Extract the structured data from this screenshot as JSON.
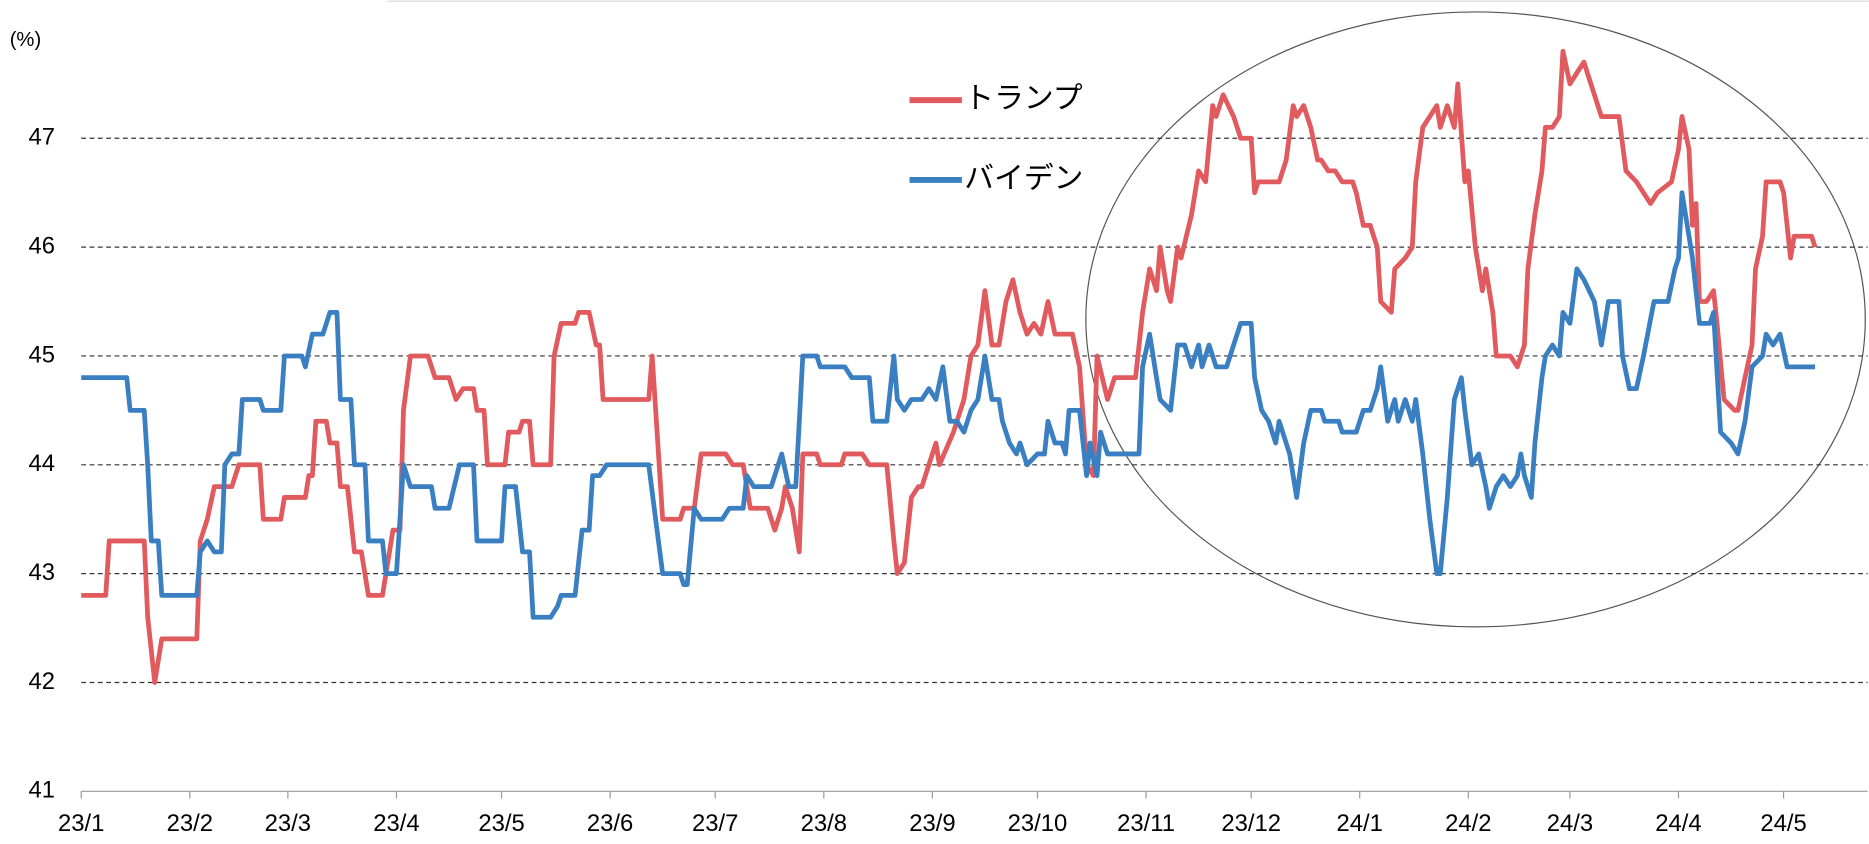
{
  "chart_data": {
    "type": "line",
    "ylabel": "(%)",
    "xlim": [
      0,
      510
    ],
    "ylim": [
      41,
      48
    ],
    "xticks": [
      {
        "value": 0,
        "label": "23/1"
      },
      {
        "value": 31,
        "label": "23/2"
      },
      {
        "value": 59,
        "label": "23/3"
      },
      {
        "value": 90,
        "label": "23/4"
      },
      {
        "value": 120,
        "label": "23/5"
      },
      {
        "value": 151,
        "label": "23/6"
      },
      {
        "value": 181,
        "label": "23/7"
      },
      {
        "value": 212,
        "label": "23/8"
      },
      {
        "value": 243,
        "label": "23/9"
      },
      {
        "value": 273,
        "label": "23/10"
      },
      {
        "value": 304,
        "label": "23/11"
      },
      {
        "value": 334,
        "label": "23/12"
      },
      {
        "value": 365,
        "label": "24/1"
      },
      {
        "value": 396,
        "label": "24/2"
      },
      {
        "value": 425,
        "label": "24/3"
      },
      {
        "value": 456,
        "label": "24/4"
      },
      {
        "value": 486,
        "label": "24/5"
      }
    ],
    "yticks": [
      41,
      42,
      43,
      44,
      45,
      46,
      47
    ],
    "grid": true,
    "legend": "top",
    "series": [
      {
        "name": "トランプ",
        "color": "#e05a5e",
        "x": [
          0,
          7,
          8,
          18,
          19,
          21,
          23,
          33,
          34,
          36,
          38,
          41,
          43,
          45,
          51,
          52,
          57,
          58,
          64,
          65,
          66,
          67,
          70,
          71,
          73,
          74,
          76,
          78,
          80,
          82,
          86,
          87,
          89,
          91,
          92,
          94,
          99,
          101,
          105,
          107,
          109,
          112,
          113,
          115,
          116,
          121,
          122,
          125,
          126,
          128,
          129,
          134,
          135,
          137,
          141,
          142,
          145,
          147,
          148,
          149,
          162,
          163,
          165,
          166,
          171,
          172,
          175,
          177,
          184,
          186,
          189,
          191,
          196,
          198,
          200,
          201,
          203,
          205,
          206,
          210,
          211,
          217,
          218,
          223,
          225,
          230,
          232,
          233,
          235,
          237,
          239,
          240,
          242,
          244,
          245,
          249,
          252,
          254,
          256,
          258,
          260,
          262,
          264,
          266,
          268,
          270,
          272,
          274,
          276,
          278,
          283,
          285,
          287,
          289,
          290,
          293,
          295,
          301,
          303,
          305,
          307,
          308,
          310,
          311,
          313,
          314,
          317,
          319,
          321,
          323,
          324,
          326,
          329,
          331,
          334,
          335,
          336,
          342,
          344,
          346,
          347,
          349,
          351,
          353,
          354,
          356,
          358,
          360,
          363,
          364,
          366,
          368,
          370,
          371,
          374,
          375,
          378,
          380,
          381,
          383,
          385,
          387,
          388,
          390,
          392,
          393,
          395,
          396,
          398,
          400,
          401,
          403,
          404,
          408,
          410,
          412,
          413,
          415,
          417,
          418,
          420,
          422,
          423,
          425,
          427,
          429,
          432,
          434,
          439,
          441,
          444,
          446,
          448,
          450,
          454,
          456,
          457,
          459,
          460,
          461,
          462,
          464,
          466,
          467,
          469,
          472,
          473,
          475,
          477,
          478,
          480,
          481,
          485,
          486,
          488,
          489,
          494,
          495
        ],
        "values": [
          42.8,
          42.8,
          43.3,
          43.3,
          42.6,
          42.0,
          42.4,
          42.4,
          43.3,
          43.5,
          43.8,
          43.8,
          43.8,
          44.0,
          44.0,
          43.5,
          43.5,
          43.7,
          43.7,
          43.9,
          43.9,
          44.4,
          44.4,
          44.2,
          44.2,
          43.8,
          43.8,
          43.2,
          43.2,
          42.8,
          42.8,
          43.0,
          43.4,
          43.4,
          44.5,
          45.0,
          45.0,
          44.8,
          44.8,
          44.6,
          44.7,
          44.7,
          44.5,
          44.5,
          44.0,
          44.0,
          44.3,
          44.3,
          44.4,
          44.4,
          44.0,
          44.0,
          45.0,
          45.3,
          45.3,
          45.4,
          45.4,
          45.1,
          45.1,
          44.6,
          44.6,
          45.0,
          44.0,
          43.5,
          43.5,
          43.6,
          43.6,
          44.1,
          44.1,
          44.0,
          44.0,
          43.6,
          43.6,
          43.4,
          43.6,
          43.8,
          43.6,
          43.2,
          44.1,
          44.1,
          44.0,
          44.0,
          44.1,
          44.1,
          44.0,
          44.0,
          43.3,
          43.0,
          43.1,
          43.7,
          43.8,
          43.8,
          44.0,
          44.2,
          44.0,
          44.3,
          44.6,
          45.0,
          45.1,
          45.6,
          45.1,
          45.1,
          45.5,
          45.7,
          45.4,
          45.2,
          45.3,
          45.2,
          45.5,
          45.2,
          45.2,
          44.9,
          44.0,
          43.9,
          45.0,
          44.6,
          44.8,
          44.8,
          45.4,
          45.8,
          45.6,
          46.0,
          45.6,
          45.5,
          46.0,
          45.9,
          46.3,
          46.7,
          46.6,
          47.3,
          47.2,
          47.4,
          47.2,
          47.0,
          47.0,
          46.5,
          46.6,
          46.6,
          46.8,
          47.3,
          47.2,
          47.3,
          47.1,
          46.8,
          46.8,
          46.7,
          46.7,
          46.6,
          46.6,
          46.5,
          46.2,
          46.2,
          46.0,
          45.5,
          45.4,
          45.8,
          45.9,
          46.0,
          46.6,
          47.1,
          47.2,
          47.3,
          47.1,
          47.3,
          47.1,
          47.5,
          46.6,
          46.7,
          46.0,
          45.6,
          45.8,
          45.4,
          45.0,
          45.0,
          44.9,
          45.1,
          45.8,
          46.3,
          46.7,
          47.1,
          47.1,
          47.2,
          47.8,
          47.5,
          47.6,
          47.7,
          47.4,
          47.2,
          47.2,
          46.7,
          46.6,
          46.5,
          46.4,
          46.5,
          46.6,
          46.9,
          47.2,
          46.9,
          46.2,
          46.4,
          45.5,
          45.5,
          45.6,
          45.3,
          44.6,
          44.5,
          44.5,
          44.8,
          45.1,
          45.8,
          46.1,
          46.6,
          46.6,
          46.5,
          45.9,
          46.1,
          46.1,
          46.0
        ]
      },
      {
        "name": "バイデン",
        "color": "#3a7fc1",
        "x": [
          0,
          13,
          14,
          18,
          19,
          20,
          22,
          23,
          33,
          34,
          36,
          38,
          40,
          41,
          43,
          45,
          46,
          51,
          52,
          57,
          58,
          63,
          64,
          66,
          69,
          71,
          73,
          74,
          77,
          78,
          81,
          82,
          86,
          87,
          90,
          91,
          92,
          94,
          100,
          101,
          105,
          108,
          112,
          113,
          120,
          121,
          124,
          126,
          128,
          129,
          134,
          136,
          137,
          141,
          143,
          145,
          146,
          148,
          150,
          162,
          164,
          166,
          171,
          172,
          173,
          175,
          177,
          183,
          185,
          189,
          190,
          192,
          197,
          199,
          200,
          202,
          204,
          206,
          210,
          211,
          218,
          220,
          225,
          226,
          230,
          232,
          233,
          235,
          237,
          240,
          242,
          244,
          246,
          248,
          250,
          252,
          254,
          256,
          258,
          260,
          262,
          263,
          265,
          267,
          268,
          270,
          273,
          275,
          276,
          278,
          280,
          281,
          282,
          285,
          287,
          288,
          290,
          291,
          293,
          302,
          303,
          305,
          307,
          308,
          311,
          313,
          315,
          317,
          319,
          320,
          322,
          324,
          327,
          329,
          331,
          334,
          335,
          337,
          339,
          341,
          342,
          345,
          347,
          349,
          351,
          354,
          355,
          359,
          360,
          364,
          366,
          368,
          370,
          371,
          373,
          375,
          376,
          378,
          380,
          381,
          383,
          385,
          387,
          388,
          390,
          392,
          394,
          395,
          397,
          399,
          401,
          402,
          404,
          406,
          408,
          410,
          411,
          412,
          414,
          415,
          417,
          418,
          420,
          422,
          423,
          425,
          427,
          429,
          432,
          434,
          436,
          439,
          440,
          442,
          444,
          446,
          449,
          453,
          455,
          456,
          457,
          459,
          460,
          462,
          465,
          466,
          468,
          471,
          473,
          475,
          477,
          480,
          481,
          483,
          485,
          487,
          495
        ],
        "values": [
          44.8,
          44.8,
          44.5,
          44.5,
          44.0,
          43.3,
          43.3,
          42.8,
          42.8,
          43.2,
          43.3,
          43.2,
          43.2,
          44.0,
          44.1,
          44.1,
          44.6,
          44.6,
          44.5,
          44.5,
          45.0,
          45.0,
          44.9,
          45.2,
          45.2,
          45.4,
          45.4,
          44.6,
          44.6,
          44.0,
          44.0,
          43.3,
          43.3,
          43.0,
          43.0,
          43.5,
          44.0,
          43.8,
          43.8,
          43.6,
          43.6,
          44.0,
          44.0,
          43.3,
          43.3,
          43.8,
          43.8,
          43.2,
          43.2,
          42.6,
          42.6,
          42.7,
          42.8,
          42.8,
          43.4,
          43.4,
          43.9,
          43.9,
          44.0,
          44.0,
          43.5,
          43.0,
          43.0,
          42.9,
          42.9,
          43.6,
          43.5,
          43.5,
          43.6,
          43.6,
          43.9,
          43.8,
          43.8,
          44.0,
          44.1,
          43.8,
          43.8,
          45.0,
          45.0,
          44.9,
          44.9,
          44.8,
          44.8,
          44.4,
          44.4,
          45.0,
          44.6,
          44.5,
          44.6,
          44.6,
          44.7,
          44.6,
          44.9,
          44.4,
          44.4,
          44.3,
          44.5,
          44.6,
          45.0,
          44.6,
          44.6,
          44.4,
          44.2,
          44.1,
          44.2,
          44.0,
          44.1,
          44.1,
          44.4,
          44.2,
          44.2,
          44.1,
          44.5,
          44.5,
          43.9,
          44.2,
          43.9,
          44.3,
          44.1,
          44.1,
          44.9,
          45.2,
          44.8,
          44.6,
          44.5,
          45.1,
          45.1,
          44.9,
          45.1,
          44.9,
          45.1,
          44.9,
          44.9,
          45.1,
          45.3,
          45.3,
          44.8,
          44.5,
          44.4,
          44.2,
          44.4,
          44.1,
          43.7,
          44.2,
          44.5,
          44.5,
          44.4,
          44.4,
          44.3,
          44.3,
          44.5,
          44.5,
          44.7,
          44.9,
          44.4,
          44.6,
          44.4,
          44.6,
          44.4,
          44.6,
          44.1,
          43.5,
          43.0,
          43.0,
          43.7,
          44.6,
          44.8,
          44.5,
          44.0,
          44.1,
          43.8,
          43.6,
          43.8,
          43.9,
          43.8,
          43.9,
          44.1,
          43.9,
          43.7,
          44.2,
          44.8,
          45.0,
          45.1,
          45.0,
          45.4,
          45.3,
          45.8,
          45.7,
          45.5,
          45.1,
          45.5,
          45.5,
          45.0,
          44.7,
          44.7,
          45.0,
          45.5,
          45.5,
          45.8,
          45.9,
          46.5,
          46.1,
          45.9,
          45.3,
          45.3,
          45.4,
          44.3,
          44.2,
          44.1,
          44.4,
          44.9,
          45.0,
          45.2,
          45.1,
          45.2,
          44.9,
          44.9
        ]
      }
    ]
  }
}
